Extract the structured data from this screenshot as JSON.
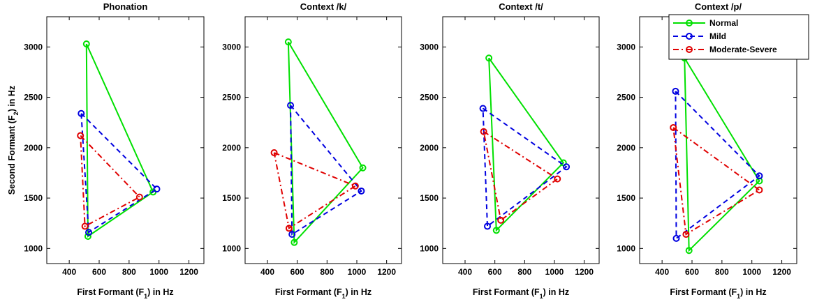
{
  "chart_data": [
    {
      "type": "line",
      "title": "Phonation",
      "xlabel": "First Formant (F",
      "xlabel_sub": "1",
      "xlabel_tail": ") in Hz",
      "ylabel": "Second Formant (F",
      "ylabel_sub": "2",
      "ylabel_tail": ") in Hz",
      "xlim": [
        250,
        1300
      ],
      "ylim": [
        850,
        3300
      ],
      "xticks": [
        400,
        600,
        800,
        1000,
        1200
      ],
      "yticks": [
        1000,
        1500,
        2000,
        2500,
        3000
      ],
      "series": [
        {
          "name": "Normal",
          "color": "#00e000",
          "dash": "solid",
          "points": [
            [
              515,
              3030
            ],
            [
              960,
              1560
            ],
            [
              525,
              1120
            ],
            [
              515,
              3030
            ]
          ]
        },
        {
          "name": "Mild",
          "color": "#0000e0",
          "dash": "dashed",
          "points": [
            [
              480,
              2340
            ],
            [
              985,
              1590
            ],
            [
              530,
              1160
            ],
            [
              480,
              2340
            ]
          ]
        },
        {
          "name": "Moderate-Severe",
          "color": "#e00000",
          "dash": "dashdot",
          "points": [
            [
              475,
              2120
            ],
            [
              870,
              1510
            ],
            [
              505,
              1220
            ],
            [
              475,
              2120
            ]
          ]
        }
      ]
    },
    {
      "type": "line",
      "title": "Context /k/",
      "xlabel": "First Formant (F",
      "xlabel_sub": "1",
      "xlabel_tail": ") in Hz",
      "xlim": [
        250,
        1300
      ],
      "ylim": [
        850,
        3300
      ],
      "xticks": [
        400,
        600,
        800,
        1000,
        1200
      ],
      "yticks": [
        1000,
        1500,
        2000,
        2500,
        3000
      ],
      "series": [
        {
          "name": "Normal",
          "color": "#00e000",
          "dash": "solid",
          "points": [
            [
              540,
              3050
            ],
            [
              1040,
              1800
            ],
            [
              580,
              1060
            ],
            [
              540,
              3050
            ]
          ]
        },
        {
          "name": "Mild",
          "color": "#0000e0",
          "dash": "dashed",
          "points": [
            [
              555,
              2420
            ],
            [
              1030,
              1570
            ],
            [
              565,
              1140
            ],
            [
              555,
              2420
            ]
          ]
        },
        {
          "name": "Moderate-Severe",
          "color": "#e00000",
          "dash": "dashdot",
          "points": [
            [
              445,
              1950
            ],
            [
              990,
              1620
            ],
            [
              545,
              1200
            ],
            [
              445,
              1950
            ]
          ]
        }
      ]
    },
    {
      "type": "line",
      "title": "Context /t/",
      "xlabel": "First Formant (F",
      "xlabel_sub": "1",
      "xlabel_tail": ") in Hz",
      "xlim": [
        250,
        1300
      ],
      "ylim": [
        850,
        3300
      ],
      "xticks": [
        400,
        600,
        800,
        1000,
        1200
      ],
      "yticks": [
        1000,
        1500,
        2000,
        2500,
        3000
      ],
      "series": [
        {
          "name": "Normal",
          "color": "#00e000",
          "dash": "solid",
          "points": [
            [
              560,
              2890
            ],
            [
              1060,
              1850
            ],
            [
              610,
              1180
            ],
            [
              560,
              2890
            ]
          ]
        },
        {
          "name": "Mild",
          "color": "#0000e0",
          "dash": "dashed",
          "points": [
            [
              520,
              2390
            ],
            [
              1080,
              1810
            ],
            [
              550,
              1220
            ],
            [
              520,
              2390
            ]
          ]
        },
        {
          "name": "Moderate-Severe",
          "color": "#e00000",
          "dash": "dashdot",
          "points": [
            [
              525,
              2160
            ],
            [
              1020,
              1690
            ],
            [
              640,
              1280
            ],
            [
              525,
              2160
            ]
          ]
        }
      ]
    },
    {
      "type": "line",
      "title": "Context /p/",
      "xlabel": "First Formant (F",
      "xlabel_sub": "1",
      "xlabel_tail": ") in Hz",
      "xlim": [
        250,
        1300
      ],
      "ylim": [
        850,
        3300
      ],
      "xticks": [
        400,
        600,
        800,
        1000,
        1200
      ],
      "yticks": [
        1000,
        1500,
        2000,
        2500,
        3000
      ],
      "legend": {
        "position": "top-right",
        "entries": [
          "Normal",
          "Mild",
          "Moderate-Severe"
        ]
      },
      "series": [
        {
          "name": "Normal",
          "color": "#00e000",
          "dash": "solid",
          "points": [
            [
              550,
              2890
            ],
            [
              1050,
              1670
            ],
            [
              580,
              980
            ],
            [
              550,
              2890
            ]
          ]
        },
        {
          "name": "Mild",
          "color": "#0000e0",
          "dash": "dashed",
          "points": [
            [
              490,
              2560
            ],
            [
              1050,
              1720
            ],
            [
              495,
              1100
            ],
            [
              490,
              2560
            ]
          ]
        },
        {
          "name": "Moderate-Severe",
          "color": "#e00000",
          "dash": "dashdot",
          "points": [
            [
              475,
              2200
            ],
            [
              1050,
              1580
            ],
            [
              560,
              1140
            ],
            [
              475,
              2200
            ]
          ]
        }
      ]
    }
  ]
}
